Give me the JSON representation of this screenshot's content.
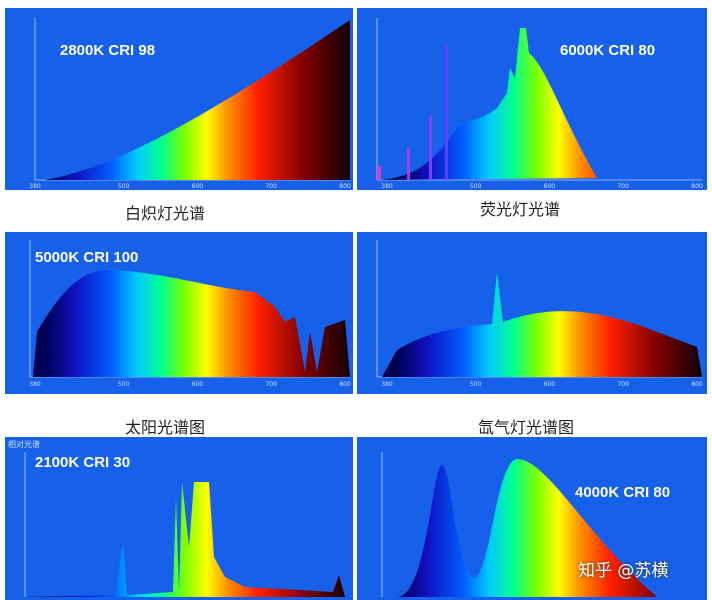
{
  "panels": [
    {
      "label": "2800K CRI 98",
      "caption": "白炽灯光谱",
      "xticks": [
        380,
        500,
        600,
        700,
        800
      ]
    },
    {
      "label": "6000K CRI 80",
      "caption": "荧光灯光谱",
      "xticks": [
        380,
        500,
        600,
        700,
        800
      ]
    },
    {
      "label": "5000K CRI 100",
      "caption": "太阳光谱图",
      "xticks": [
        380,
        500,
        600,
        700,
        800
      ]
    },
    {
      "caption": "氙气灯光谱图",
      "xticks": [
        380,
        500,
        600,
        700,
        800
      ]
    },
    {
      "label": "2100K CRI 30",
      "axis_label": "相对光谱"
    },
    {
      "label": "4000K CRI 80"
    }
  ],
  "watermark": "知乎 @苏横"
}
